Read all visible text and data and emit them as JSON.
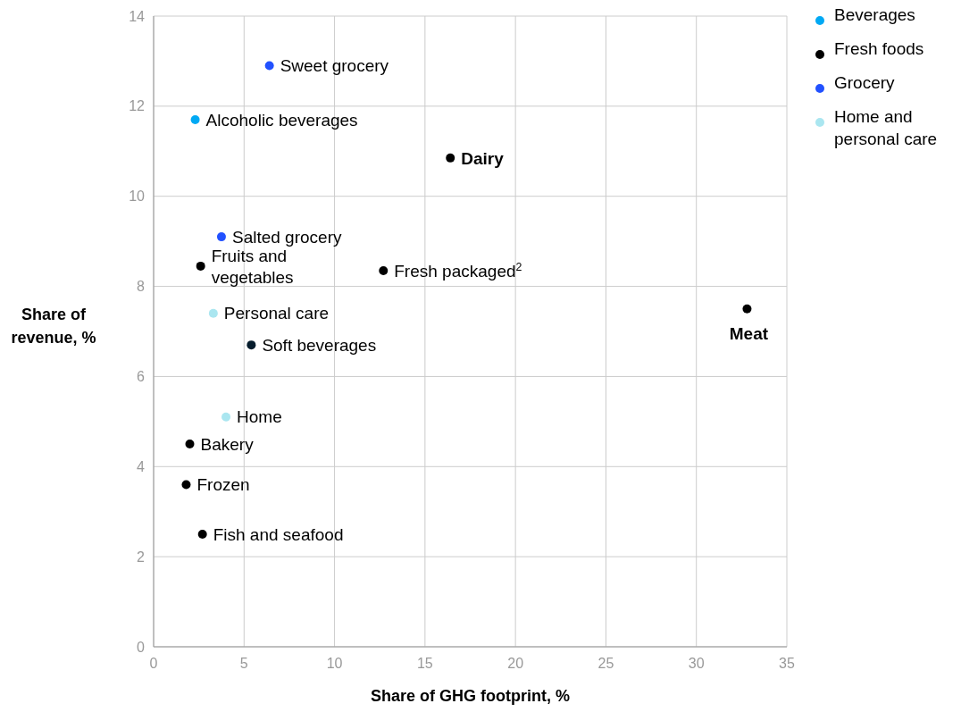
{
  "chart_data": {
    "type": "scatter",
    "xlabel": "Share of GHG footprint, %",
    "ylabel": "Share of revenue, %",
    "xlim": [
      0,
      35
    ],
    "xticks": [
      0,
      5,
      10,
      15,
      20,
      25,
      30,
      35
    ],
    "ylim": [
      0,
      14
    ],
    "yticks": [
      0,
      2,
      4,
      6,
      8,
      10,
      12,
      14
    ],
    "grid": true,
    "legend": "top right",
    "marker": "circle",
    "series": [
      {
        "name": "Beverages",
        "color": "#00a9f4",
        "x": [
          2.3
        ],
        "values": [
          11.7
        ]
      },
      {
        "name": "Fresh foods",
        "color": "#000000",
        "x": [
          16.4,
          2.6,
          12.7,
          32.8,
          2.0,
          1.8,
          2.7
        ],
        "values": [
          10.85,
          8.45,
          8.35,
          7.5,
          4.5,
          3.6,
          2.5
        ]
      },
      {
        "name": "Grocery",
        "color": "#2251ff",
        "x": [
          6.4,
          3.75
        ],
        "values": [
          12.9,
          9.1
        ]
      },
      {
        "name": "Home and personal care",
        "color": "#aae6f0",
        "x": [
          3.3,
          4.0
        ],
        "values": [
          7.4,
          5.1
        ]
      },
      {
        "color": "#051c2c",
        "x": [
          5.4
        ],
        "values": [
          6.7
        ]
      }
    ],
    "annotations": [
      {
        "text": "Sweet grocery",
        "x": 6.4,
        "y": 12.9
      },
      {
        "text": "Alcoholic beverages",
        "x": 2.3,
        "y": 11.7
      },
      {
        "text": "Dairy",
        "x": 16.4,
        "y": 10.85
      },
      {
        "text": "Salted grocery",
        "x": 3.75,
        "y": 9.1
      },
      {
        "text": "Fruits and vegetables",
        "x": 2.6,
        "y": 8.45
      },
      {
        "text": "Fresh packaged$^{2}$",
        "x": 12.7,
        "y": 8.35
      },
      {
        "text": "Meat",
        "x": 32.8,
        "y": 7.5
      },
      {
        "text": "Personal care",
        "x": 3.3,
        "y": 7.4
      },
      {
        "text": "Soft beverages",
        "x": 5.4,
        "y": 6.7
      },
      {
        "text": "Home",
        "x": 4.0,
        "y": 5.1
      },
      {
        "text": "Bakery",
        "x": 2.0,
        "y": 4.5
      },
      {
        "text": "Frozen",
        "x": 1.8,
        "y": 3.6
      },
      {
        "text": "Fish and seafood",
        "x": 2.7,
        "y": 2.5
      }
    ]
  }
}
